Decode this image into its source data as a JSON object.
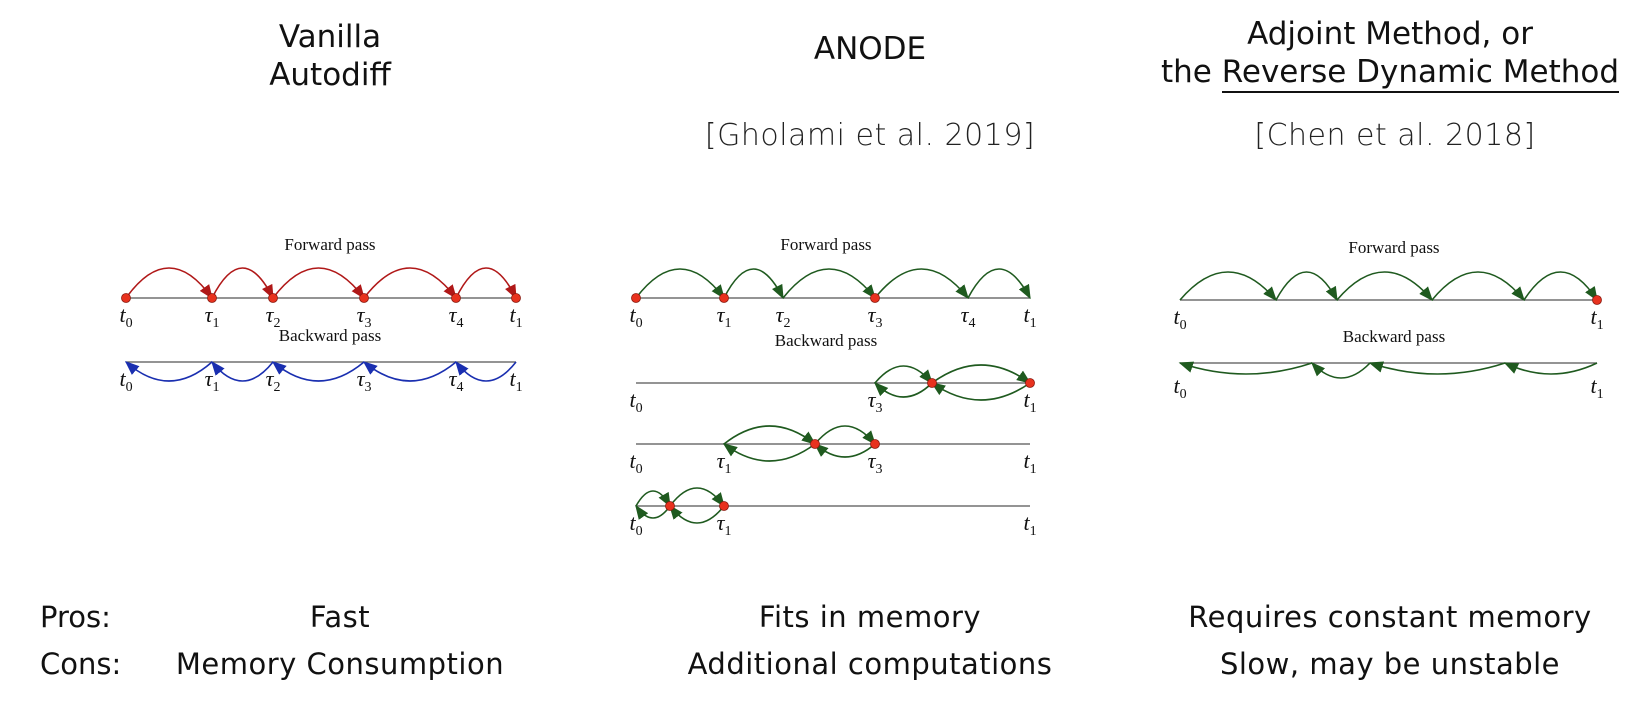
{
  "columns": [
    {
      "title_lines": [
        "Vanilla",
        "Autodiff"
      ],
      "citation": "",
      "pros": "Fast",
      "cons": "Memory Consumption"
    },
    {
      "title_lines": [
        "ANODE"
      ],
      "citation": "[Gholami et al. 2019]",
      "pros": "Fits in memory",
      "cons": "Additional computations"
    },
    {
      "title_lines": [
        "Adjoint Method, or",
        "the ",
        "Reverse Dynamic Method"
      ],
      "citation": "[Chen et al. 2018]",
      "pros": "Requires constant memory",
      "cons": "Slow, may be unstable"
    }
  ],
  "rows": {
    "pros_label": "Pros:",
    "cons_label": "Cons:"
  },
  "diagram_text": {
    "forward": "Forward pass",
    "backward": "Backward pass",
    "t0": "t",
    "t1": "t",
    "tau": "τ",
    "sub0": "0",
    "sub1": "1",
    "sub2": "2",
    "sub3": "3",
    "sub4": "4"
  },
  "colors": {
    "forward_red": "#b01818",
    "backward_blue": "#1a2fb0",
    "green": "#1f5a1f",
    "dot": "#e8321e",
    "axis": "#555555"
  }
}
